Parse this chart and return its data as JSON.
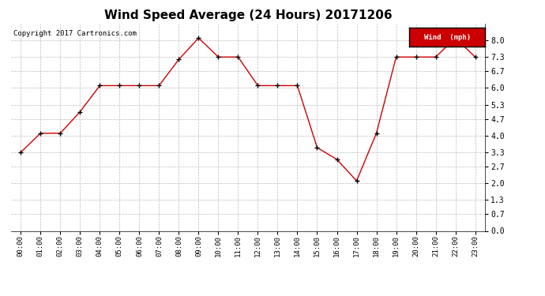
{
  "title": "Wind Speed Average (24 Hours) 20171206",
  "copyright_text": "Copyright 2017 Cartronics.com",
  "legend_label": "Wind  (mph)",
  "x_labels": [
    "00:00",
    "01:00",
    "02:00",
    "03:00",
    "04:00",
    "05:00",
    "06:00",
    "07:00",
    "08:00",
    "09:00",
    "10:00",
    "11:00",
    "12:00",
    "13:00",
    "14:00",
    "15:00",
    "16:00",
    "17:00",
    "18:00",
    "19:00",
    "20:00",
    "21:00",
    "22:00",
    "23:00"
  ],
  "y_values": [
    3.3,
    4.1,
    4.1,
    5.0,
    6.1,
    6.1,
    6.1,
    6.1,
    7.2,
    8.1,
    7.3,
    7.3,
    6.1,
    6.1,
    6.1,
    3.5,
    3.0,
    2.1,
    4.1,
    7.3,
    7.3,
    7.3,
    8.1,
    7.3
  ],
  "line_color": "#cc0000",
  "marker_color": "#000000",
  "legend_bg": "#cc0000",
  "legend_text_color": "#ffffff",
  "background_color": "#ffffff",
  "grid_color": "#bbbbbb",
  "title_fontsize": 11,
  "ylim": [
    0.0,
    8.7
  ],
  "yticks": [
    0.0,
    0.7,
    1.3,
    2.0,
    2.7,
    3.3,
    4.0,
    4.7,
    5.3,
    6.0,
    6.7,
    7.3,
    8.0
  ]
}
